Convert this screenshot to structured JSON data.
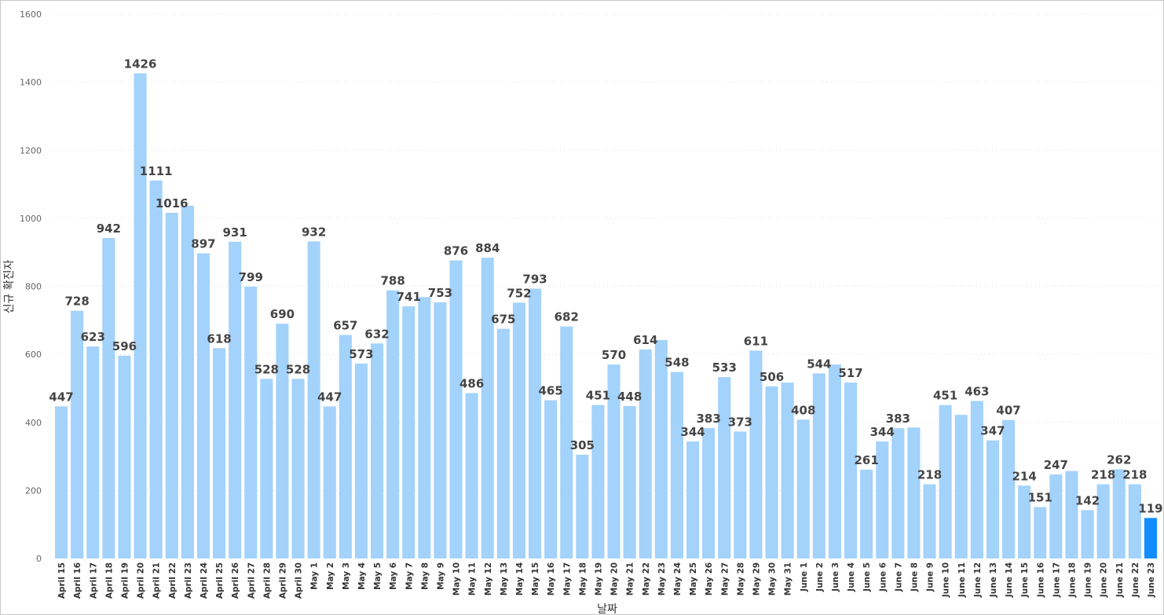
{
  "chart_data": {
    "type": "bar",
    "title": "",
    "xlabel": "날짜",
    "ylabel": "신규 확진자",
    "ylim": [
      0,
      1600
    ],
    "yticks": [
      0,
      200,
      400,
      600,
      800,
      1000,
      1200,
      1400,
      1600
    ],
    "grid": true,
    "colors": {
      "bar": "#a3d2fb",
      "highlight": "#118dff"
    },
    "highlight_index": 69,
    "categories": [
      "April 15",
      "April 16",
      "April 17",
      "April 18",
      "April 19",
      "April 20",
      "April 21",
      "April 22",
      "April 23",
      "April 24",
      "April 25",
      "April 26",
      "April 27",
      "April 28",
      "April 29",
      "April 30",
      "May 1",
      "May 2",
      "May 3",
      "May 4",
      "May 5",
      "May 6",
      "May 7",
      "May 8",
      "May 9",
      "May 10",
      "May 11",
      "May 12",
      "May 13",
      "May 14",
      "May 15",
      "May 16",
      "May 17",
      "May 18",
      "May 19",
      "May 20",
      "May 21",
      "May 22",
      "May 23",
      "May 24",
      "May 25",
      "May 26",
      "May 27",
      "May 28",
      "May 29",
      "May 30",
      "May 31",
      "June 1",
      "June 2",
      "June 3",
      "June 4",
      "June 5",
      "June 6",
      "June 7",
      "June 8",
      "June 9",
      "June 10",
      "June 11",
      "June 12",
      "June 13",
      "June 14",
      "June 15",
      "June 16",
      "June 17",
      "June 18",
      "June 19",
      "June 20",
      "June 21",
      "June 22",
      "June 23"
    ],
    "values": [
      447,
      728,
      623,
      942,
      596,
      1426,
      1111,
      1016,
      1037,
      897,
      618,
      931,
      799,
      528,
      690,
      528,
      932,
      447,
      657,
      573,
      632,
      788,
      741,
      768,
      753,
      876,
      486,
      884,
      675,
      752,
      793,
      465,
      682,
      305,
      451,
      570,
      448,
      614,
      642,
      548,
      344,
      383,
      533,
      373,
      611,
      506,
      517,
      408,
      544,
      570,
      517,
      261,
      344,
      383,
      385,
      218,
      451,
      422,
      463,
      347,
      407,
      214,
      151,
      247,
      257,
      142,
      218,
      262,
      218,
      119
    ],
    "data_labels": [
      "447",
      "728",
      "623",
      "942",
      "596",
      "1426",
      "1111",
      "1016",
      null,
      "897",
      "618",
      "931",
      "799",
      "528",
      "690",
      "528",
      "932",
      "447",
      "657",
      "573",
      "632",
      "788",
      "741",
      null,
      "753",
      "876",
      "486",
      "884",
      "675",
      "752",
      "793",
      "465",
      "682",
      "305",
      "451",
      "570",
      "448",
      "614",
      null,
      "548",
      "344",
      "383",
      "533",
      "373",
      "611",
      "506",
      null,
      "408",
      "544",
      null,
      "517",
      "261",
      "344",
      "383",
      null,
      "218",
      "451",
      null,
      "463",
      "347",
      "407",
      "214",
      "151",
      "247",
      null,
      "142",
      "218",
      "262",
      "218",
      "119"
    ]
  }
}
